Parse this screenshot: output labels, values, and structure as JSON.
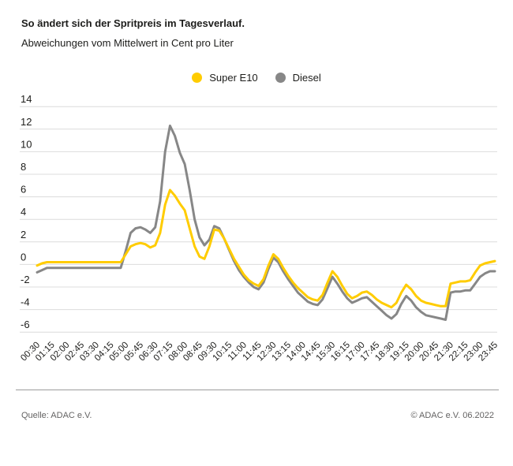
{
  "header": {
    "title": "So ändert sich der Spritpreis im Tagesverlauf.",
    "subtitle": "Abweichungen vom Mittelwert in Cent pro Liter"
  },
  "legend": [
    {
      "label": "Super E10",
      "color": "#FFCC00"
    },
    {
      "label": "Diesel",
      "color": "#878787"
    }
  ],
  "chart_data": {
    "type": "line",
    "title": "So ändert sich der Spritpreis im Tagesverlauf.",
    "subtitle": "Abweichungen vom Mittelwert in Cent pro Liter",
    "ylabel": "Abweichung vom Mittelwert in Cent pro Liter",
    "ylim": [
      -6,
      14
    ],
    "ytick_step": 2,
    "grid": true,
    "legend_position": "top-center",
    "x_first": "00:30",
    "x_last": "23:45",
    "x_interval_minutes": 15,
    "x_tick_labels": [
      "00:30",
      "01:15",
      "02:00",
      "02:45",
      "03:30",
      "04:15",
      "05:00",
      "05:45",
      "06:30",
      "07:15",
      "08:00",
      "08:45",
      "09:30",
      "10:15",
      "11:00",
      "11:45",
      "12:30",
      "13:15",
      "14:00",
      "14:45",
      "15:30",
      "16:15",
      "17:00",
      "17:45",
      "18:30",
      "19:15",
      "20:00",
      "20:45",
      "21:30",
      "22:15",
      "23:00",
      "23:45"
    ],
    "points_per_tick": 3,
    "series": [
      {
        "name": "Super E10",
        "color": "#FFCC00",
        "values": [
          -0.1,
          0.1,
          0.2,
          0.2,
          0.2,
          0.2,
          0.2,
          0.2,
          0.2,
          0.2,
          0.2,
          0.2,
          0.2,
          0.2,
          0.2,
          0.2,
          0.2,
          0.2,
          0.9,
          1.6,
          1.8,
          1.9,
          1.8,
          1.5,
          1.7,
          2.8,
          5.3,
          6.6,
          6.1,
          5.4,
          4.8,
          3.2,
          1.6,
          0.7,
          0.5,
          1.6,
          3.1,
          3.0,
          2.3,
          1.4,
          0.5,
          -0.2,
          -0.9,
          -1.4,
          -1.7,
          -1.9,
          -1.3,
          -0.1,
          0.9,
          0.5,
          -0.3,
          -1.0,
          -1.6,
          -2.1,
          -2.5,
          -2.9,
          -3.1,
          -3.2,
          -2.7,
          -1.6,
          -0.6,
          -1.1,
          -1.9,
          -2.6,
          -3.0,
          -2.8,
          -2.5,
          -2.4,
          -2.7,
          -3.1,
          -3.4,
          -3.6,
          -3.8,
          -3.4,
          -2.5,
          -1.8,
          -2.2,
          -2.8,
          -3.2,
          -3.4,
          -3.5,
          -3.6,
          -3.7,
          -3.7,
          -1.7,
          -1.6,
          -1.5,
          -1.5,
          -1.4,
          -0.7,
          -0.1,
          0.1,
          0.2,
          0.3
        ]
      },
      {
        "name": "Diesel",
        "color": "#878787",
        "values": [
          -0.7,
          -0.5,
          -0.3,
          -0.3,
          -0.3,
          -0.3,
          -0.3,
          -0.3,
          -0.3,
          -0.3,
          -0.3,
          -0.3,
          -0.3,
          -0.3,
          -0.3,
          -0.3,
          -0.3,
          -0.3,
          1.2,
          2.8,
          3.2,
          3.3,
          3.1,
          2.8,
          3.3,
          5.6,
          10.0,
          12.3,
          11.4,
          9.9,
          8.9,
          6.6,
          4.0,
          2.4,
          1.7,
          2.2,
          3.4,
          3.2,
          2.3,
          1.3,
          0.3,
          -0.5,
          -1.1,
          -1.6,
          -2.0,
          -2.2,
          -1.6,
          -0.4,
          0.6,
          0.2,
          -0.6,
          -1.3,
          -1.9,
          -2.5,
          -2.9,
          -3.3,
          -3.5,
          -3.6,
          -3.1,
          -2.1,
          -1.1,
          -1.7,
          -2.4,
          -3.0,
          -3.4,
          -3.2,
          -3.0,
          -2.9,
          -3.3,
          -3.7,
          -4.1,
          -4.5,
          -4.8,
          -4.4,
          -3.5,
          -2.8,
          -3.2,
          -3.8,
          -4.2,
          -4.5,
          -4.6,
          -4.7,
          -4.8,
          -4.9,
          -2.5,
          -2.4,
          -2.4,
          -2.3,
          -2.3,
          -1.7,
          -1.1,
          -0.8,
          -0.6,
          -0.6
        ]
      }
    ]
  },
  "footer": {
    "source": "Quelle: ADAC e.V.",
    "copyright": "© ADAC e.V. 06.2022"
  },
  "colors": {
    "accent_yellow": "#FFCC00",
    "line_gray": "#878787",
    "gridline": "#dcdcdc",
    "text_dark": "#1d1d1b",
    "footer_text": "#646363",
    "footer_rule": "#9c9c9c"
  }
}
